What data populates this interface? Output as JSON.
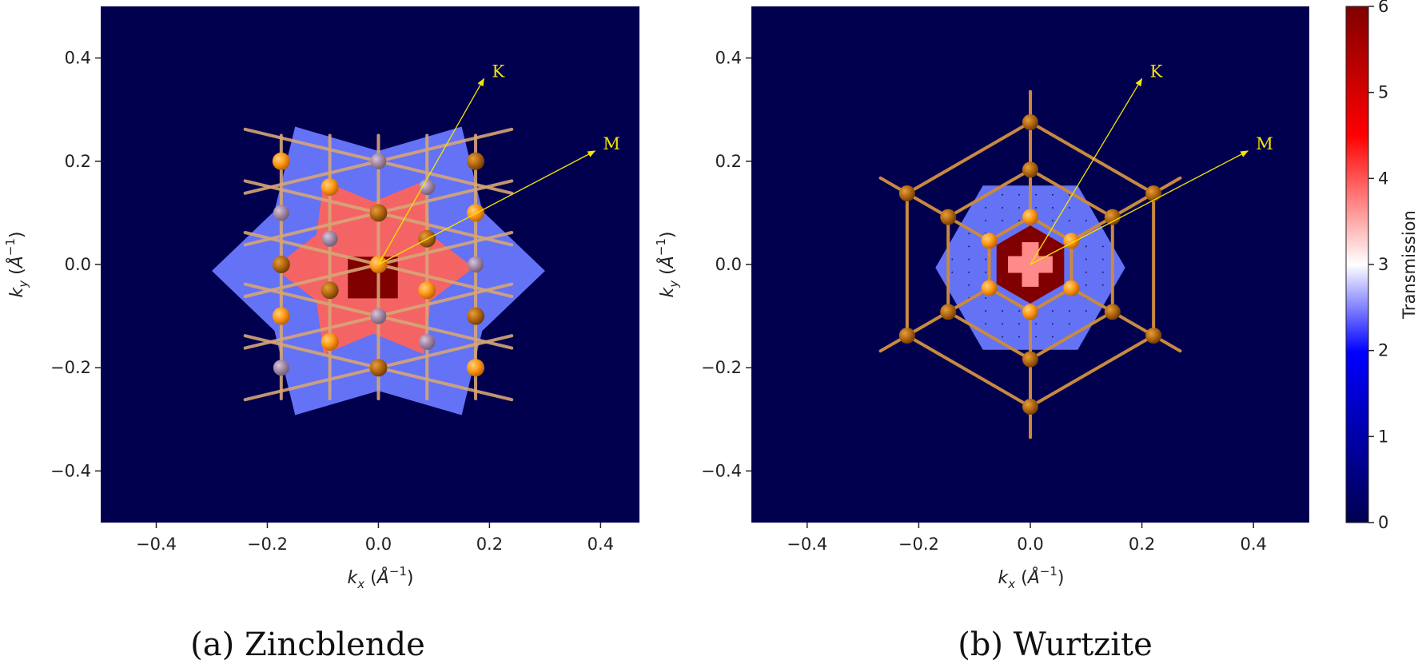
{
  "chart_data": [
    {
      "type": "heatmap",
      "panel_caption": "(a) Zincblende",
      "xlabel": "k_x (Å^-1)",
      "ylabel": "k_y (Å^-1)",
      "xlim": [
        -0.5,
        0.47
      ],
      "ylim": [
        -0.5,
        0.5
      ],
      "xticks": [
        "−0.4",
        "−0.2",
        "0.0",
        "0.2",
        "0.4"
      ],
      "yticks": [
        "0.4",
        "0.2",
        "0.0",
        "−0.2",
        "−0.4"
      ],
      "background_value": 0,
      "regions": [
        {
          "value": 2,
          "description": "outer six-pointed star region",
          "approx_extent_kx": [
            -0.31,
            0.29
          ],
          "approx_extent_ky": [
            -0.3,
            0.26
          ]
        },
        {
          "value": 4,
          "description": "inner star region",
          "approx_extent_kx": [
            -0.17,
            0.17
          ],
          "approx_extent_ky": [
            -0.18,
            0.16
          ]
        },
        {
          "value": 6,
          "description": "central region at Gamma",
          "approx_extent_kx": [
            -0.055,
            0.035
          ],
          "approx_extent_ky": [
            -0.06,
            0.015
          ]
        }
      ],
      "overlay": "zincblende atomic lattice (triangular)",
      "directions": [
        {
          "label": "K",
          "from": [
            0.0,
            0.0
          ],
          "to": [
            0.19,
            0.36
          ]
        },
        {
          "label": "M",
          "from": [
            0.0,
            0.0
          ],
          "to": [
            0.39,
            0.22
          ]
        }
      ]
    },
    {
      "type": "heatmap",
      "panel_caption": "(b) Wurtzite",
      "xlabel": "k_x (Å^-1)",
      "ylabel": "k_y (Å^-1)",
      "xlim": [
        -0.5,
        0.5
      ],
      "ylim": [
        -0.5,
        0.5
      ],
      "xticks": [
        "−0.4",
        "−0.2",
        "0.0",
        "0.2",
        "0.4"
      ],
      "yticks": [
        "0.4",
        "0.2",
        "0.0",
        "−0.2",
        "−0.4"
      ],
      "background_value": 0,
      "regions": [
        {
          "value": 2,
          "description": "hexagonal region",
          "approx_extent_kx": [
            -0.16,
            0.16
          ],
          "approx_extent_ky": [
            -0.18,
            0.155
          ]
        },
        {
          "value": 6,
          "description": "central hexagon",
          "approx_extent_kx": [
            -0.07,
            0.07
          ],
          "approx_extent_ky": [
            -0.07,
            0.06
          ]
        },
        {
          "value": 3.5,
          "description": "central cross",
          "approx_extent_kx": [
            -0.04,
            0.04
          ],
          "approx_extent_ky": [
            -0.04,
            0.04
          ]
        }
      ],
      "overlay": "wurtzite atomic lattice (hexagonal)",
      "directions": [
        {
          "label": "K",
          "from": [
            0.0,
            0.0
          ],
          "to": [
            0.2,
            0.36
          ]
        },
        {
          "label": "M",
          "from": [
            0.0,
            0.0
          ],
          "to": [
            0.39,
            0.22
          ]
        }
      ]
    }
  ],
  "colorbar": {
    "label": "Transmission",
    "range": [
      0,
      6
    ],
    "ticks": [
      "0",
      "1",
      "2",
      "3",
      "4",
      "5",
      "6"
    ],
    "colormap": [
      "#000050",
      "#0000ff",
      "#ffffff",
      "#ff0000",
      "#800000"
    ]
  },
  "colors": {
    "background": "#00004e",
    "level2": "#6472f5",
    "level4": "#f56464",
    "level6": "#800000",
    "level_cross": "#ff8a8a",
    "arrow": "#f5e400",
    "atom_orange": "#ff9a1a",
    "atom_brown": "#b86a10",
    "atom_grey": "#a68aa8",
    "bond": "#d6a676"
  }
}
